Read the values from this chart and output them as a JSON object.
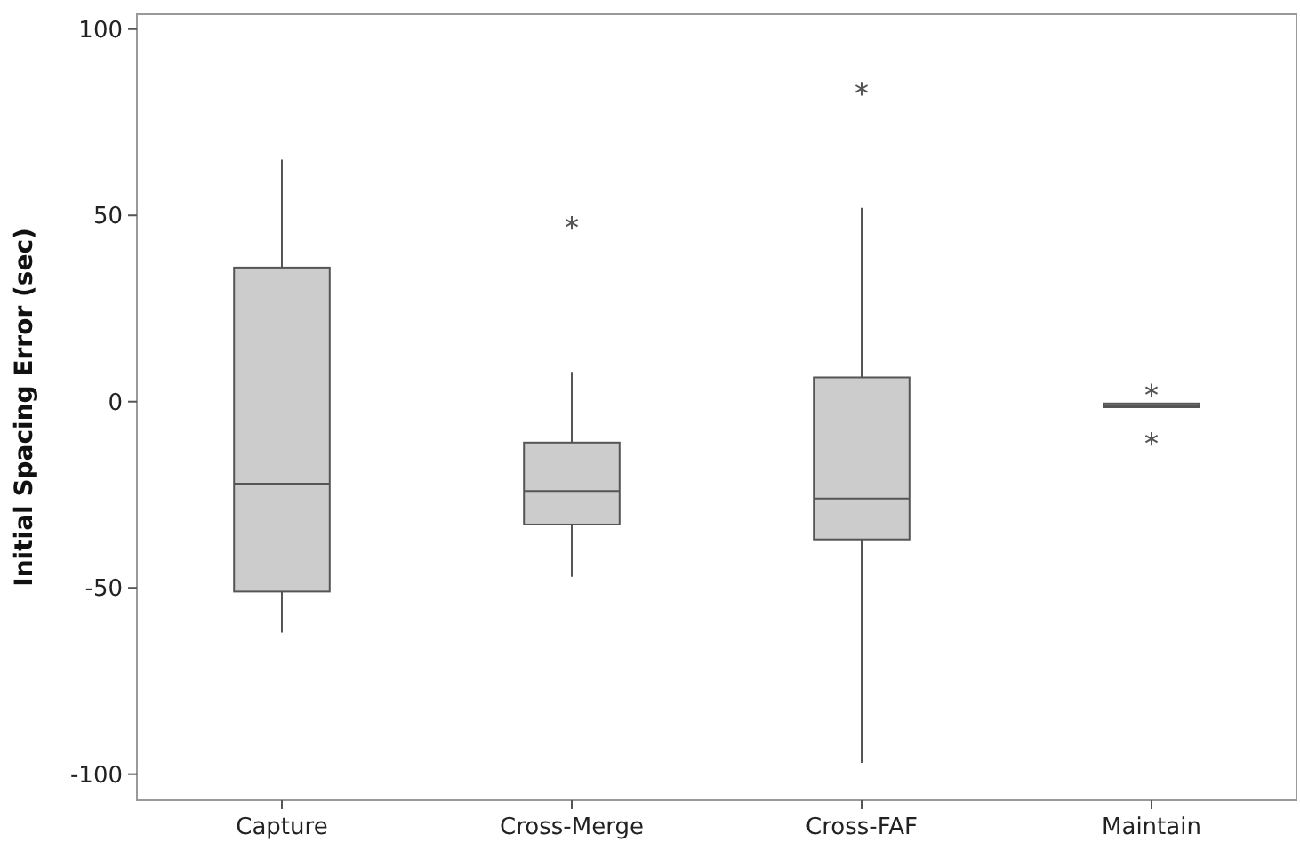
{
  "chart_data": {
    "type": "box",
    "ylabel": "Initial Spacing Error (sec)",
    "categories": [
      "Capture",
      "Cross-Merge",
      "Cross-FAF",
      "Maintain"
    ],
    "color": "#cccccc",
    "boxes": [
      {
        "low": -62,
        "q1": -51,
        "median": -22,
        "q3": 36,
        "high": 65
      },
      {
        "low": -47,
        "q1": -33,
        "median": -24,
        "q3": -11,
        "high": 8,
        "outliers": [
          48
        ]
      },
      {
        "low": -97,
        "q1": -37,
        "median": -26,
        "q3": 6.5,
        "high": 52,
        "outliers": [
          84
        ]
      },
      {
        "low": -1.5,
        "q1": -1.5,
        "median": -1,
        "q3": -0.5,
        "high": -0.5,
        "outliers": [
          3,
          -10
        ]
      }
    ],
    "ylim": [
      -107,
      104
    ],
    "yticks": [
      -100,
      -50,
      0,
      50,
      100
    ],
    "grid": false
  }
}
